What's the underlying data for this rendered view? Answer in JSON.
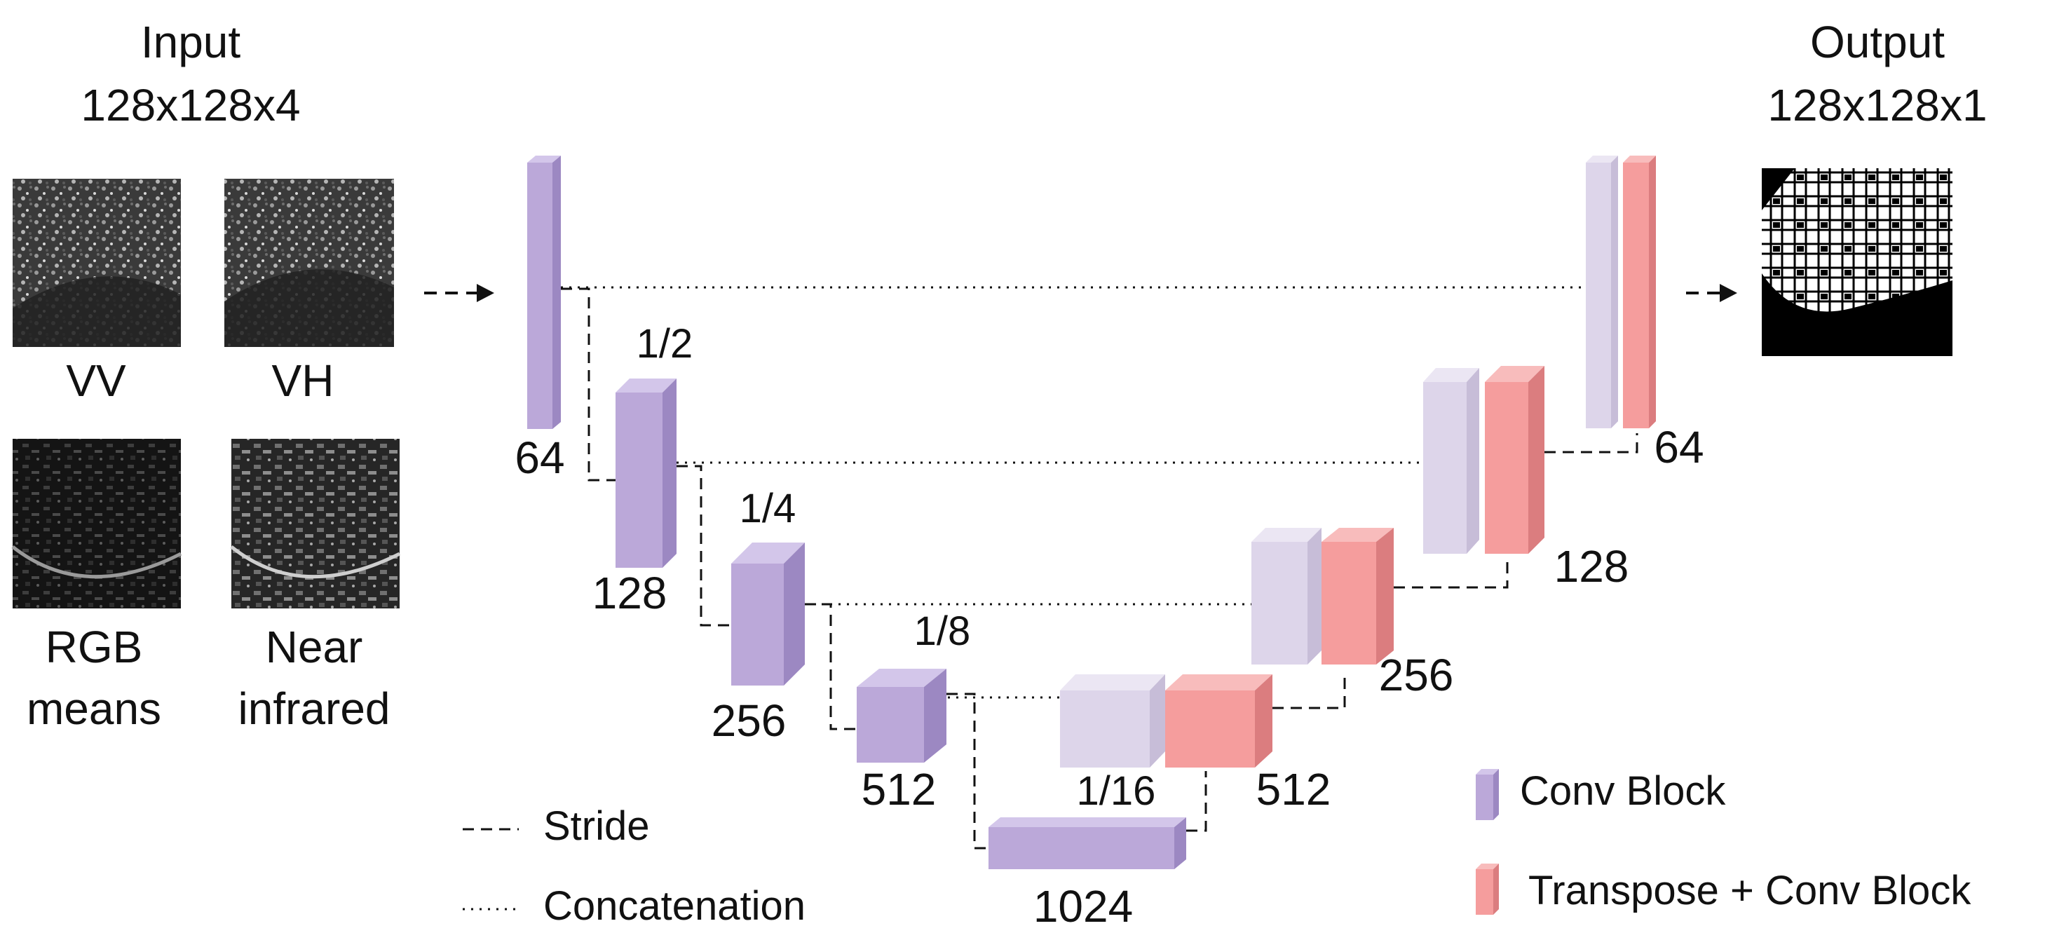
{
  "input": {
    "title": "Input",
    "shape": "128x128x4"
  },
  "output": {
    "title": "Output",
    "shape": "128x128x1"
  },
  "channels": {
    "vv": "VV",
    "vh": "VH",
    "rgb_line1": "RGB",
    "rgb_line2": "means",
    "nir_line1": "Near",
    "nir_line2": "infrared"
  },
  "encoder": {
    "b64": "64",
    "b128": "128",
    "b256": "256",
    "b512": "512",
    "b1024": "1024"
  },
  "scales": {
    "s2": "1/2",
    "s4": "1/4",
    "s8": "1/8",
    "s16": "1/16"
  },
  "decoder": {
    "d512": "512",
    "d256": "256",
    "d128": "128",
    "d64": "64"
  },
  "legend": {
    "stride": "Stride",
    "concatenation": "Concatenation",
    "conv_block": "Conv Block",
    "transpose_conv_block": "Transpose + Conv Block"
  },
  "colors": {
    "conv": "#bba8d9",
    "conv_side": "#9c88c2",
    "conv_top": "#d3c6ea",
    "conv_light": "#ddd5ea",
    "transpose": "#f59d9d",
    "transpose_side": "#db7d7f",
    "transpose_top": "#f8bcbc"
  }
}
